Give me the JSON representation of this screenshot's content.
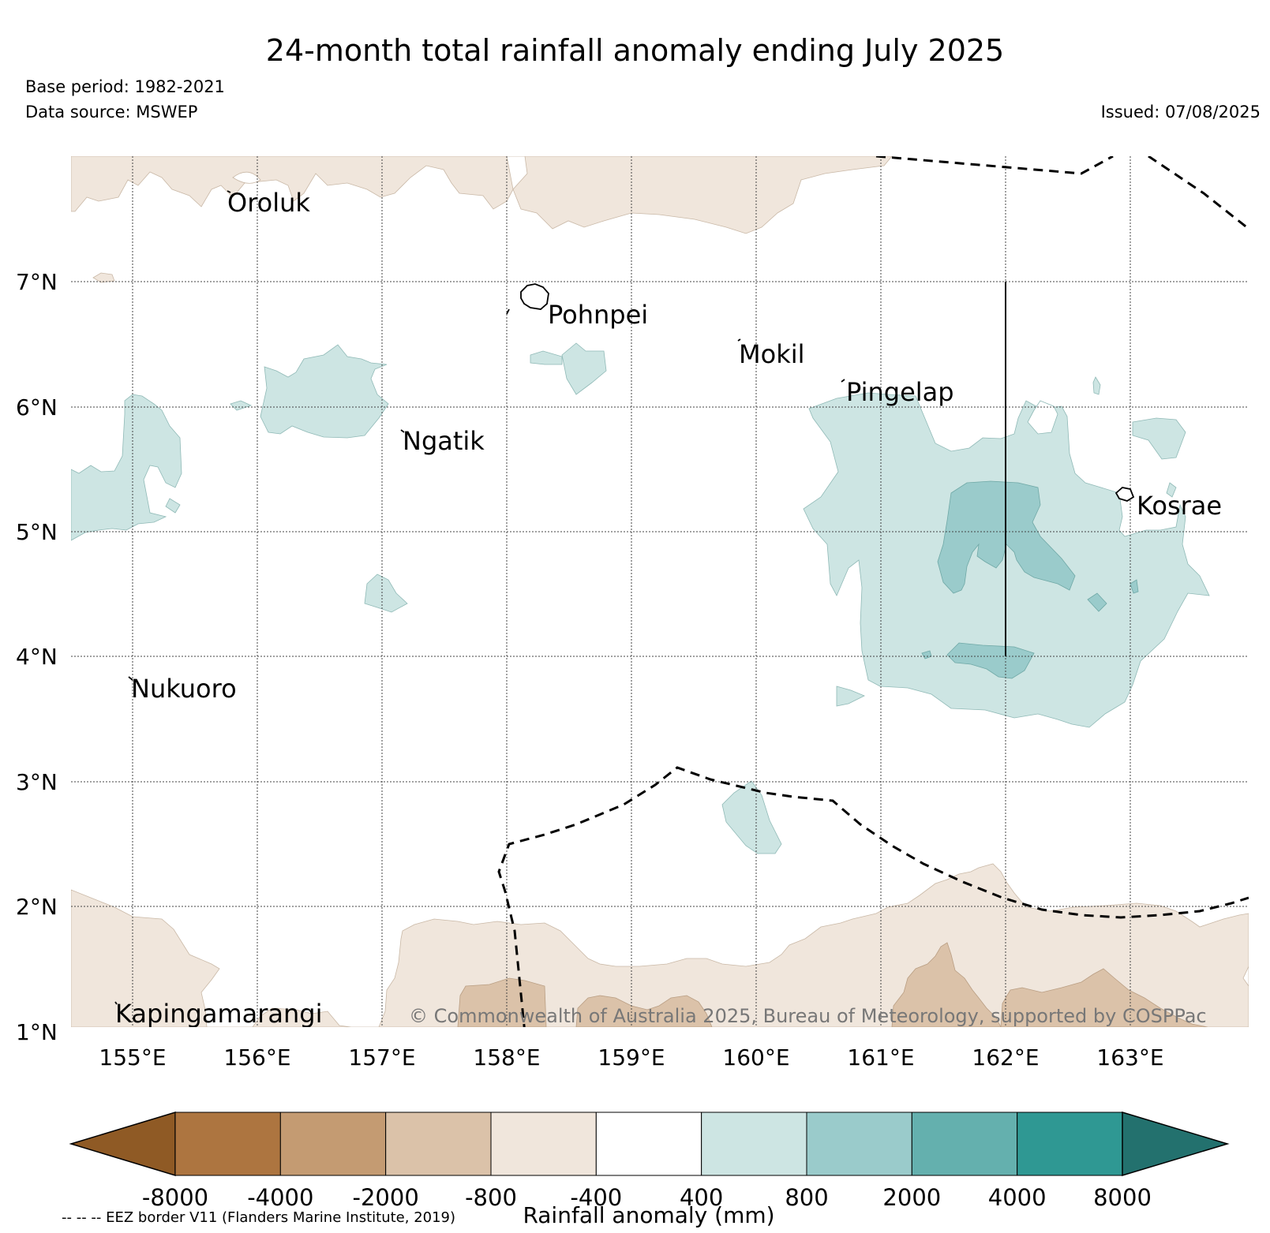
{
  "title": "24-month total rainfall anomaly ending July 2025",
  "base_period": "Base period: 1982-2021",
  "data_source": "Data source: MSWEP",
  "issued": "Issued: 07/08/2025",
  "copyright": "© Commonwealth of Australia 2025, Bureau of Meteorology, supported by COSPPac",
  "eez_note": "-- -- -- EEZ border V11 (Flanders Marine Institute, 2019)",
  "map": {
    "lon_labels": [
      "155°E",
      "156°E",
      "157°E",
      "158°E",
      "159°E",
      "160°E",
      "161°E",
      "162°E",
      "163°E"
    ],
    "lat_labels": [
      "7°N",
      "6°N",
      "5°N",
      "4°N",
      "3°N",
      "2°N",
      "1°N"
    ],
    "islands": [
      "Oroluk",
      "Pohnpei",
      "Mokil",
      "Pingelap",
      "Ngatik",
      "Kosrae",
      "Nukuoro",
      "Kapingamarangi"
    ]
  },
  "colorbar": {
    "title": "Rainfall anomaly (mm)",
    "ticks": [
      "-8000",
      "-4000",
      "-2000",
      "-800",
      "-400",
      "400",
      "800",
      "2000",
      "4000",
      "8000"
    ],
    "colors": [
      "#8f5a25",
      "#ad7540",
      "#c49b72",
      "#dbc2a9",
      "#f0e6dc",
      "#ffffff",
      "#cde5e3",
      "#9acbcb",
      "#64b0ae",
      "#2f9893",
      "#23716e"
    ]
  }
}
